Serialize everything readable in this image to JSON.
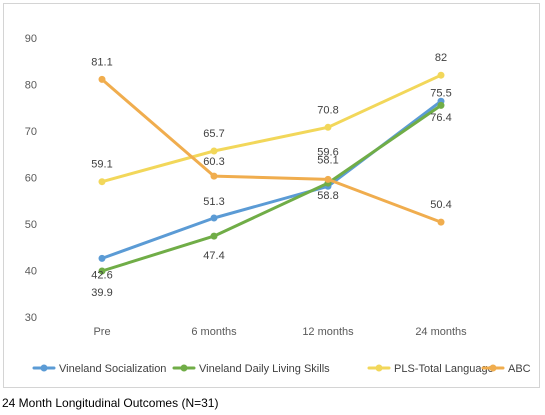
{
  "caption": "24 Month Longitudinal Outcomes (N=31)",
  "chart_data": {
    "type": "line",
    "title": "",
    "xlabel": "",
    "ylabel": "",
    "categories": [
      "Pre",
      "6 months",
      "12 months",
      "24 months"
    ],
    "ylim": [
      30,
      90
    ],
    "yticks": [
      30,
      40,
      50,
      60,
      70,
      80,
      90
    ],
    "grid": false,
    "legend": "bottom",
    "series": [
      {
        "name": "Vineland Socialization",
        "values": [
          42.6,
          51.3,
          58.1,
          76.4
        ],
        "labels": [
          "42.6",
          "51.3",
          "58.1",
          "76.4"
        ],
        "color": "#5b9bd5"
      },
      {
        "name": "Vineland Daily Living Skills",
        "values": [
          39.9,
          47.4,
          58.8,
          75.5
        ],
        "labels": [
          "39.9",
          "47.4",
          "58.8",
          "75.5"
        ],
        "color": "#70ad47"
      },
      {
        "name": "PLS-Total Language",
        "values": [
          59.1,
          65.7,
          70.8,
          82
        ],
        "labels": [
          "59.1",
          "65.7",
          "70.8",
          "82"
        ],
        "color": "#f2d75a"
      },
      {
        "name": "ABC",
        "values": [
          81.1,
          60.3,
          59.6,
          50.4
        ],
        "labels": [
          "81.1",
          "60.3",
          "59.6",
          "50.4"
        ],
        "color": "#f0ad4e"
      }
    ]
  }
}
